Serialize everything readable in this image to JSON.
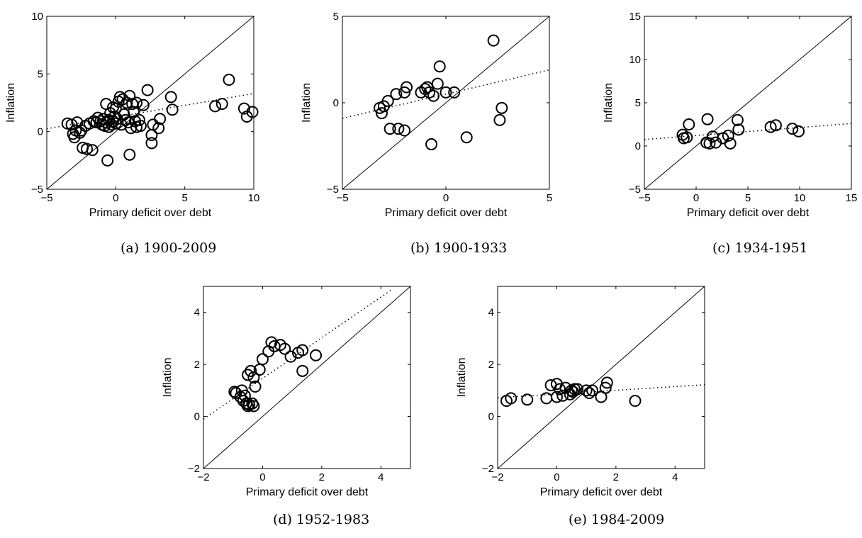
{
  "chart_data": [
    {
      "type": "scatter",
      "panel_label": "(a) 1900-2009",
      "xlabel": "Primary deficit over debt",
      "ylabel": "Inflation",
      "xlim": [
        -5,
        10
      ],
      "ylim": [
        -5,
        10
      ],
      "xticks": [
        -5,
        0,
        5,
        10
      ],
      "yticks": [
        -5,
        0,
        5,
        10
      ],
      "reference_line": {
        "from": [
          -5,
          -5
        ],
        "to": [
          10,
          10
        ]
      },
      "fit_line": {
        "from": [
          -5,
          0.25
        ],
        "to": [
          10,
          3.3
        ]
      },
      "points": [
        [
          -3.5,
          0.7
        ],
        [
          -3.2,
          0.6
        ],
        [
          -3.1,
          -0.2
        ],
        [
          -3.0,
          -0.5
        ],
        [
          -2.9,
          0.1
        ],
        [
          -2.8,
          0.8
        ],
        [
          -2.6,
          -0.1
        ],
        [
          -2.5,
          0.1
        ],
        [
          -2.4,
          -1.4
        ],
        [
          -2.2,
          0.5
        ],
        [
          -2.1,
          -1.5
        ],
        [
          -1.9,
          0.7
        ],
        [
          -1.7,
          -1.6
        ],
        [
          -1.6,
          0.9
        ],
        [
          -1.4,
          0.8
        ],
        [
          -1.3,
          1.2
        ],
        [
          -1.1,
          0.9
        ],
        [
          -1.0,
          0.6
        ],
        [
          -0.9,
          1.1
        ],
        [
          -0.8,
          0.5
        ],
        [
          -0.7,
          2.4
        ],
        [
          -0.7,
          0.8
        ],
        [
          -0.6,
          -2.5
        ],
        [
          -0.5,
          0.4
        ],
        [
          -0.5,
          1.0
        ],
        [
          -0.4,
          1.6
        ],
        [
          -0.3,
          0.6
        ],
        [
          -0.2,
          2.1
        ],
        [
          -0.2,
          0.9
        ],
        [
          -0.1,
          1.3
        ],
        [
          0.0,
          0.7
        ],
        [
          0.0,
          2.0
        ],
        [
          0.1,
          1.1
        ],
        [
          0.2,
          2.6
        ],
        [
          0.3,
          3.0
        ],
        [
          0.4,
          0.6
        ],
        [
          0.5,
          2.8
        ],
        [
          0.6,
          1.5
        ],
        [
          0.7,
          1.0
        ],
        [
          0.8,
          2.5
        ],
        [
          0.9,
          0.8
        ],
        [
          1.0,
          3.1
        ],
        [
          1.0,
          -2.0
        ],
        [
          1.1,
          0.3
        ],
        [
          1.2,
          2.4
        ],
        [
          1.3,
          1.7
        ],
        [
          1.4,
          0.9
        ],
        [
          1.5,
          0.4
        ],
        [
          1.5,
          2.5
        ],
        [
          1.7,
          1.0
        ],
        [
          1.8,
          0.5
        ],
        [
          2.0,
          2.3
        ],
        [
          2.3,
          3.6
        ],
        [
          2.6,
          -1.0
        ],
        [
          2.6,
          -0.3
        ],
        [
          2.7,
          0.6
        ],
        [
          3.1,
          0.3
        ],
        [
          3.2,
          1.1
        ],
        [
          4.0,
          3.0
        ],
        [
          4.1,
          1.9
        ],
        [
          7.2,
          2.2
        ],
        [
          7.7,
          2.4
        ],
        [
          8.2,
          4.5
        ],
        [
          9.3,
          2.0
        ],
        [
          9.5,
          1.3
        ],
        [
          9.9,
          1.7
        ]
      ]
    },
    {
      "type": "scatter",
      "panel_label": "(b) 1900-1933",
      "xlabel": "Primary deficit over debt",
      "ylabel": "Inflation",
      "xlim": [
        -5,
        5
      ],
      "ylim": [
        -5,
        5
      ],
      "xticks": [
        -5,
        0,
        5
      ],
      "yticks": [
        -5,
        0,
        5
      ],
      "reference_line": {
        "from": [
          -5,
          -5
        ],
        "to": [
          5,
          5
        ]
      },
      "fit_line": {
        "from": [
          -5,
          -0.9
        ],
        "to": [
          5,
          1.9
        ]
      },
      "points": [
        [
          -3.2,
          -0.3
        ],
        [
          -3.1,
          -0.6
        ],
        [
          -3.0,
          -0.2
        ],
        [
          -2.8,
          0.1
        ],
        [
          -2.7,
          -1.5
        ],
        [
          -2.4,
          0.5
        ],
        [
          -2.3,
          -1.5
        ],
        [
          -2.0,
          -1.6
        ],
        [
          -2.0,
          0.6
        ],
        [
          -1.9,
          0.9
        ],
        [
          -1.2,
          0.6
        ],
        [
          -1.0,
          0.8
        ],
        [
          -0.9,
          0.9
        ],
        [
          -0.8,
          0.6
        ],
        [
          -0.7,
          -2.4
        ],
        [
          -0.6,
          0.4
        ],
        [
          -0.4,
          1.1
        ],
        [
          -0.3,
          2.1
        ],
        [
          0.0,
          0.6
        ],
        [
          0.4,
          0.6
        ],
        [
          1.0,
          -2.0
        ],
        [
          2.3,
          3.6
        ],
        [
          2.6,
          -1.0
        ],
        [
          2.7,
          -0.3
        ]
      ]
    },
    {
      "type": "scatter",
      "panel_label": "(c) 1934-1951",
      "xlabel": "Primary deficit over debt",
      "ylabel": "Inflation",
      "xlim": [
        -5,
        15
      ],
      "ylim": [
        -5,
        15
      ],
      "xticks": [
        -5,
        0,
        5,
        10,
        15
      ],
      "yticks": [
        -5,
        0,
        5,
        10,
        15
      ],
      "reference_line": {
        "from": [
          -5,
          -5
        ],
        "to": [
          15,
          15
        ]
      },
      "fit_line": {
        "from": [
          -5,
          0.75
        ],
        "to": [
          15,
          2.6
        ]
      },
      "points": [
        [
          -1.3,
          1.3
        ],
        [
          -1.2,
          0.9
        ],
        [
          -0.9,
          1.0
        ],
        [
          -0.7,
          2.5
        ],
        [
          1.0,
          0.4
        ],
        [
          1.1,
          3.1
        ],
        [
          1.3,
          0.3
        ],
        [
          1.6,
          1.1
        ],
        [
          1.9,
          0.4
        ],
        [
          2.6,
          0.9
        ],
        [
          3.1,
          1.2
        ],
        [
          3.3,
          0.3
        ],
        [
          4.0,
          3.0
        ],
        [
          4.1,
          1.9
        ],
        [
          7.2,
          2.2
        ],
        [
          7.7,
          2.4
        ],
        [
          9.3,
          2.0
        ],
        [
          9.9,
          1.7
        ]
      ]
    },
    {
      "type": "scatter",
      "panel_label": "(d) 1952-1983",
      "xlabel": "Primary deficit over debt",
      "ylabel": "Inflation",
      "xlim": [
        -2,
        5
      ],
      "ylim": [
        -2,
        5
      ],
      "xticks": [
        -2,
        0,
        2,
        4
      ],
      "yticks": [
        -2,
        0,
        2,
        4
      ],
      "reference_line": {
        "from": [
          -2,
          -2
        ],
        "to": [
          5,
          5
        ]
      },
      "fit_line": {
        "from": [
          -2,
          -0.1
        ],
        "to": [
          4.4,
          4.9
        ]
      },
      "points": [
        [
          -0.95,
          0.95
        ],
        [
          -0.9,
          0.9
        ],
        [
          -0.75,
          0.75
        ],
        [
          -0.7,
          1.0
        ],
        [
          -0.65,
          0.6
        ],
        [
          -0.6,
          0.8
        ],
        [
          -0.55,
          0.5
        ],
        [
          -0.5,
          0.4
        ],
        [
          -0.5,
          1.6
        ],
        [
          -0.45,
          0.45
        ],
        [
          -0.4,
          1.75
        ],
        [
          -0.35,
          0.5
        ],
        [
          -0.3,
          1.5
        ],
        [
          -0.3,
          0.4
        ],
        [
          -0.25,
          1.15
        ],
        [
          -0.1,
          1.8
        ],
        [
          0.0,
          2.2
        ],
        [
          0.2,
          2.5
        ],
        [
          0.3,
          2.85
        ],
        [
          0.4,
          2.7
        ],
        [
          0.6,
          2.75
        ],
        [
          0.75,
          2.6
        ],
        [
          0.95,
          2.3
        ],
        [
          1.2,
          2.45
        ],
        [
          1.35,
          2.55
        ],
        [
          1.35,
          1.75
        ],
        [
          1.8,
          2.35
        ]
      ]
    },
    {
      "type": "scatter",
      "panel_label": "(e) 1984-2009",
      "xlabel": "Primary deficit over debt",
      "ylabel": "Inflation",
      "xlim": [
        -2,
        5
      ],
      "ylim": [
        -2,
        5
      ],
      "xticks": [
        -2,
        0,
        2,
        4
      ],
      "yticks": [
        -2,
        0,
        2,
        4
      ],
      "reference_line": {
        "from": [
          -2,
          -2
        ],
        "to": [
          5,
          5
        ]
      },
      "fit_line": {
        "from": [
          -2,
          0.72
        ],
        "to": [
          5,
          1.22
        ]
      },
      "points": [
        [
          -1.7,
          0.6
        ],
        [
          -1.55,
          0.7
        ],
        [
          -1.0,
          0.65
        ],
        [
          -0.35,
          0.7
        ],
        [
          -0.2,
          1.2
        ],
        [
          0.0,
          0.75
        ],
        [
          0.0,
          1.25
        ],
        [
          0.1,
          1.05
        ],
        [
          0.2,
          0.8
        ],
        [
          0.3,
          1.1
        ],
        [
          0.45,
          0.85
        ],
        [
          0.5,
          1.0
        ],
        [
          0.55,
          0.95
        ],
        [
          0.6,
          1.05
        ],
        [
          0.7,
          1.05
        ],
        [
          1.0,
          1.0
        ],
        [
          1.1,
          0.9
        ],
        [
          1.2,
          1.0
        ],
        [
          1.5,
          0.75
        ],
        [
          1.65,
          1.1
        ],
        [
          1.7,
          1.3
        ],
        [
          2.65,
          0.6
        ]
      ]
    }
  ]
}
